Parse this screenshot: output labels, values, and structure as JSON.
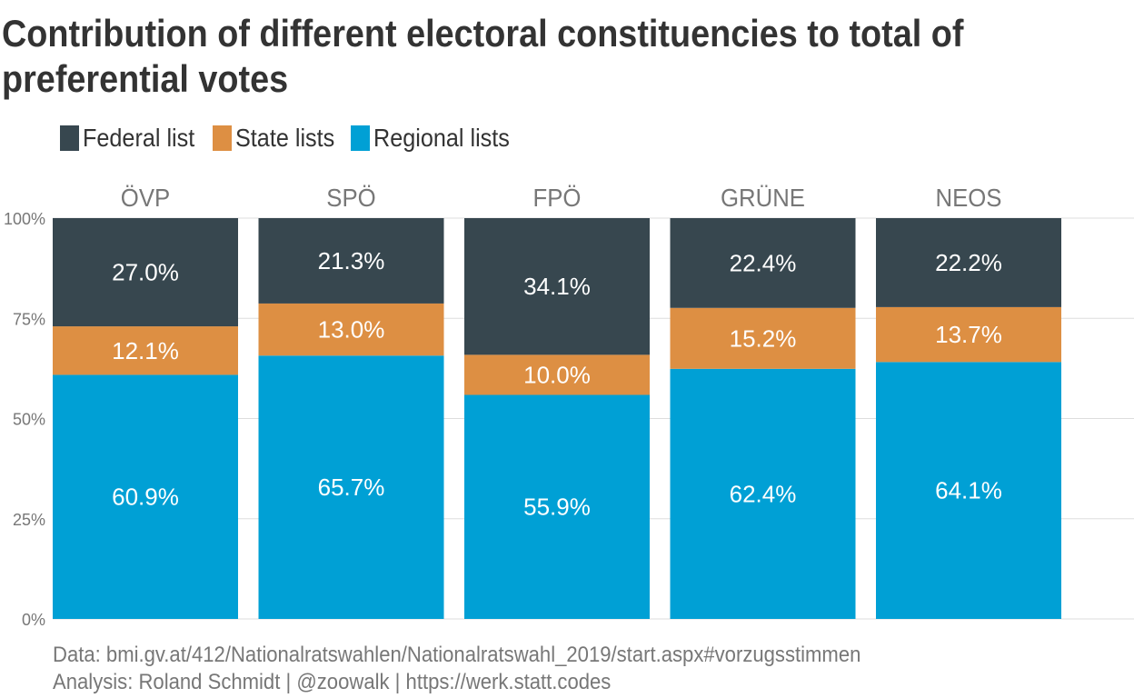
{
  "title": "Contribution of different electoral constituencies to total of preferential votes",
  "legend": [
    {
      "label": "Federal list",
      "color": "#37474f"
    },
    {
      "label": "State lists",
      "color": "#dd8f43"
    },
    {
      "label": "Regional lists",
      "color": "#00a0d5"
    }
  ],
  "chart_data": {
    "type": "bar",
    "stacked": true,
    "categories": [
      "ÖVP",
      "SPÖ",
      "FPÖ",
      "GRÜNE",
      "NEOS"
    ],
    "series": [
      {
        "name": "Regional lists",
        "values": [
          60.9,
          65.7,
          55.9,
          62.4,
          64.1
        ],
        "color": "#00a0d5",
        "labels": [
          "60.9%",
          "65.7%",
          "55.9%",
          "62.4%",
          "64.1%"
        ]
      },
      {
        "name": "State lists",
        "values": [
          12.1,
          13.0,
          10.0,
          15.2,
          13.7
        ],
        "color": "#dd8f43",
        "labels": [
          "12.1%",
          "13.0%",
          "10.0%",
          "15.2%",
          "13.7%"
        ]
      },
      {
        "name": "Federal list",
        "values": [
          27.0,
          21.3,
          34.1,
          22.4,
          22.2
        ],
        "color": "#37474f",
        "labels": [
          "27.0%",
          "21.3%",
          "34.1%",
          "22.4%",
          "22.2%"
        ]
      }
    ],
    "yticks": [
      {
        "value": 0,
        "label": "0%"
      },
      {
        "value": 25,
        "label": "25%"
      },
      {
        "value": 50,
        "label": "50%"
      },
      {
        "value": 75,
        "label": "75%"
      },
      {
        "value": 100,
        "label": "100%"
      }
    ],
    "ylim": [
      0,
      100
    ],
    "grid": true,
    "legend_position": "top-left"
  },
  "caption": {
    "line1": "Data: bmi.gv.at/412/Nationalratswahlen/Nationalratswahl_2019/start.aspx#vorzugsstimmen",
    "line2": "Analysis: Roland Schmidt | @zoowalk | https://werk.statt.codes"
  }
}
